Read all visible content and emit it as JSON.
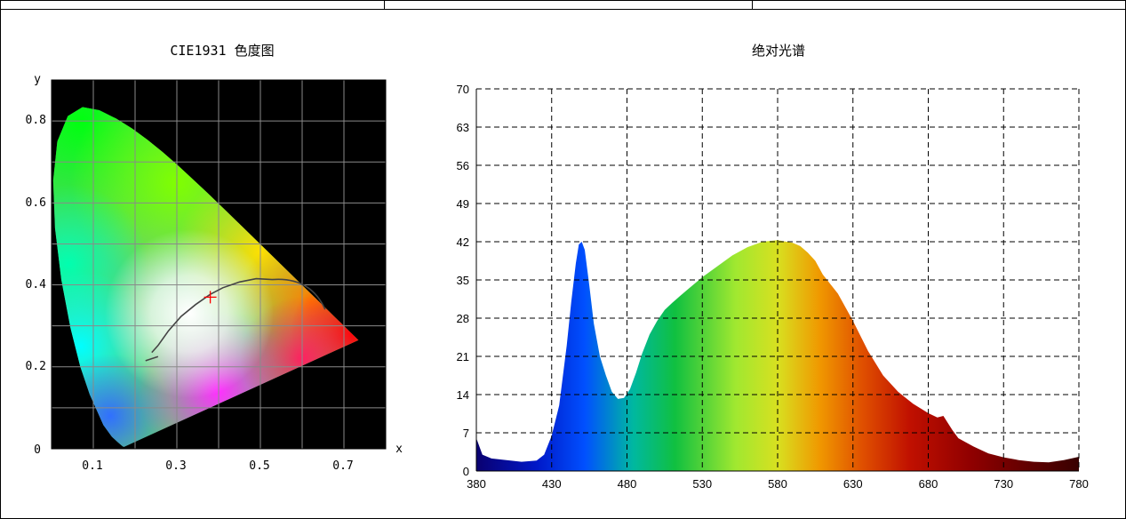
{
  "charts": {
    "cie": {
      "title": "CIE1931 色度图",
      "xlabel": "x",
      "ylabel": "y",
      "x_ticks": [
        "0.1",
        "0.3",
        "0.5",
        "0.7"
      ],
      "y_ticks": [
        "0",
        "0.2",
        "0.4",
        "0.6",
        "0.8"
      ]
    },
    "spectrum": {
      "title": "绝对光谱",
      "x_ticks": [
        "380",
        "430",
        "480",
        "530",
        "580",
        "630",
        "680",
        "730",
        "780"
      ],
      "y_ticks": [
        "0",
        "7",
        "14",
        "21",
        "28",
        "35",
        "42",
        "49",
        "56",
        "63",
        "70"
      ]
    }
  },
  "chart_data": [
    {
      "type": "scatter",
      "title": "CIE1931 色度图",
      "xlabel": "x",
      "ylabel": "y",
      "xlim": [
        0,
        0.8
      ],
      "ylim": [
        0,
        0.9
      ],
      "grid": true,
      "chromaticity_point": {
        "x": 0.38,
        "y": 0.37
      },
      "colors": {
        "background": "#000000",
        "marker": "#ff0000",
        "grid": "#8a8a8a",
        "planckian_locus": "#444444"
      }
    },
    {
      "type": "area",
      "title": "绝对光谱",
      "xlim": [
        380,
        780
      ],
      "ylim": [
        0,
        70
      ],
      "grid": true,
      "x": [
        380,
        384,
        390,
        400,
        410,
        420,
        425,
        430,
        435,
        440,
        443,
        446,
        448,
        450,
        452,
        455,
        458,
        462,
        466,
        470,
        474,
        478,
        482,
        486,
        490,
        495,
        500,
        505,
        510,
        515,
        520,
        530,
        540,
        550,
        560,
        570,
        580,
        590,
        595,
        600,
        605,
        610,
        620,
        630,
        640,
        650,
        660,
        670,
        680,
        686,
        690,
        693,
        696,
        700,
        710,
        720,
        730,
        740,
        750,
        760,
        770,
        780
      ],
      "y": [
        6,
        3,
        2.3,
        2,
        1.7,
        1.9,
        3,
        6.5,
        12,
        23,
        31,
        38,
        41.5,
        42,
        40.5,
        34,
        27,
        21,
        17.5,
        14.5,
        13.2,
        13.4,
        15,
        18,
        21.5,
        25,
        27.5,
        29.5,
        30.8,
        32,
        33.2,
        35.5,
        37.5,
        39.5,
        41,
        42,
        42.3,
        41.8,
        41.2,
        40,
        38.5,
        36,
        32.5,
        27.5,
        22,
        17.5,
        14.5,
        12.3,
        10.6,
        9.8,
        10.1,
        8.8,
        7.5,
        6,
        4.5,
        3.2,
        2.5,
        2,
        1.7,
        1.6,
        2,
        2.6
      ],
      "colors": {
        "grid": "#000000",
        "spectrum_gradient": [
          "#0a0070",
          "#0030ff",
          "#00c080",
          "#c0ff40",
          "#ff8c00",
          "#d00000",
          "#500000"
        ]
      }
    }
  ]
}
